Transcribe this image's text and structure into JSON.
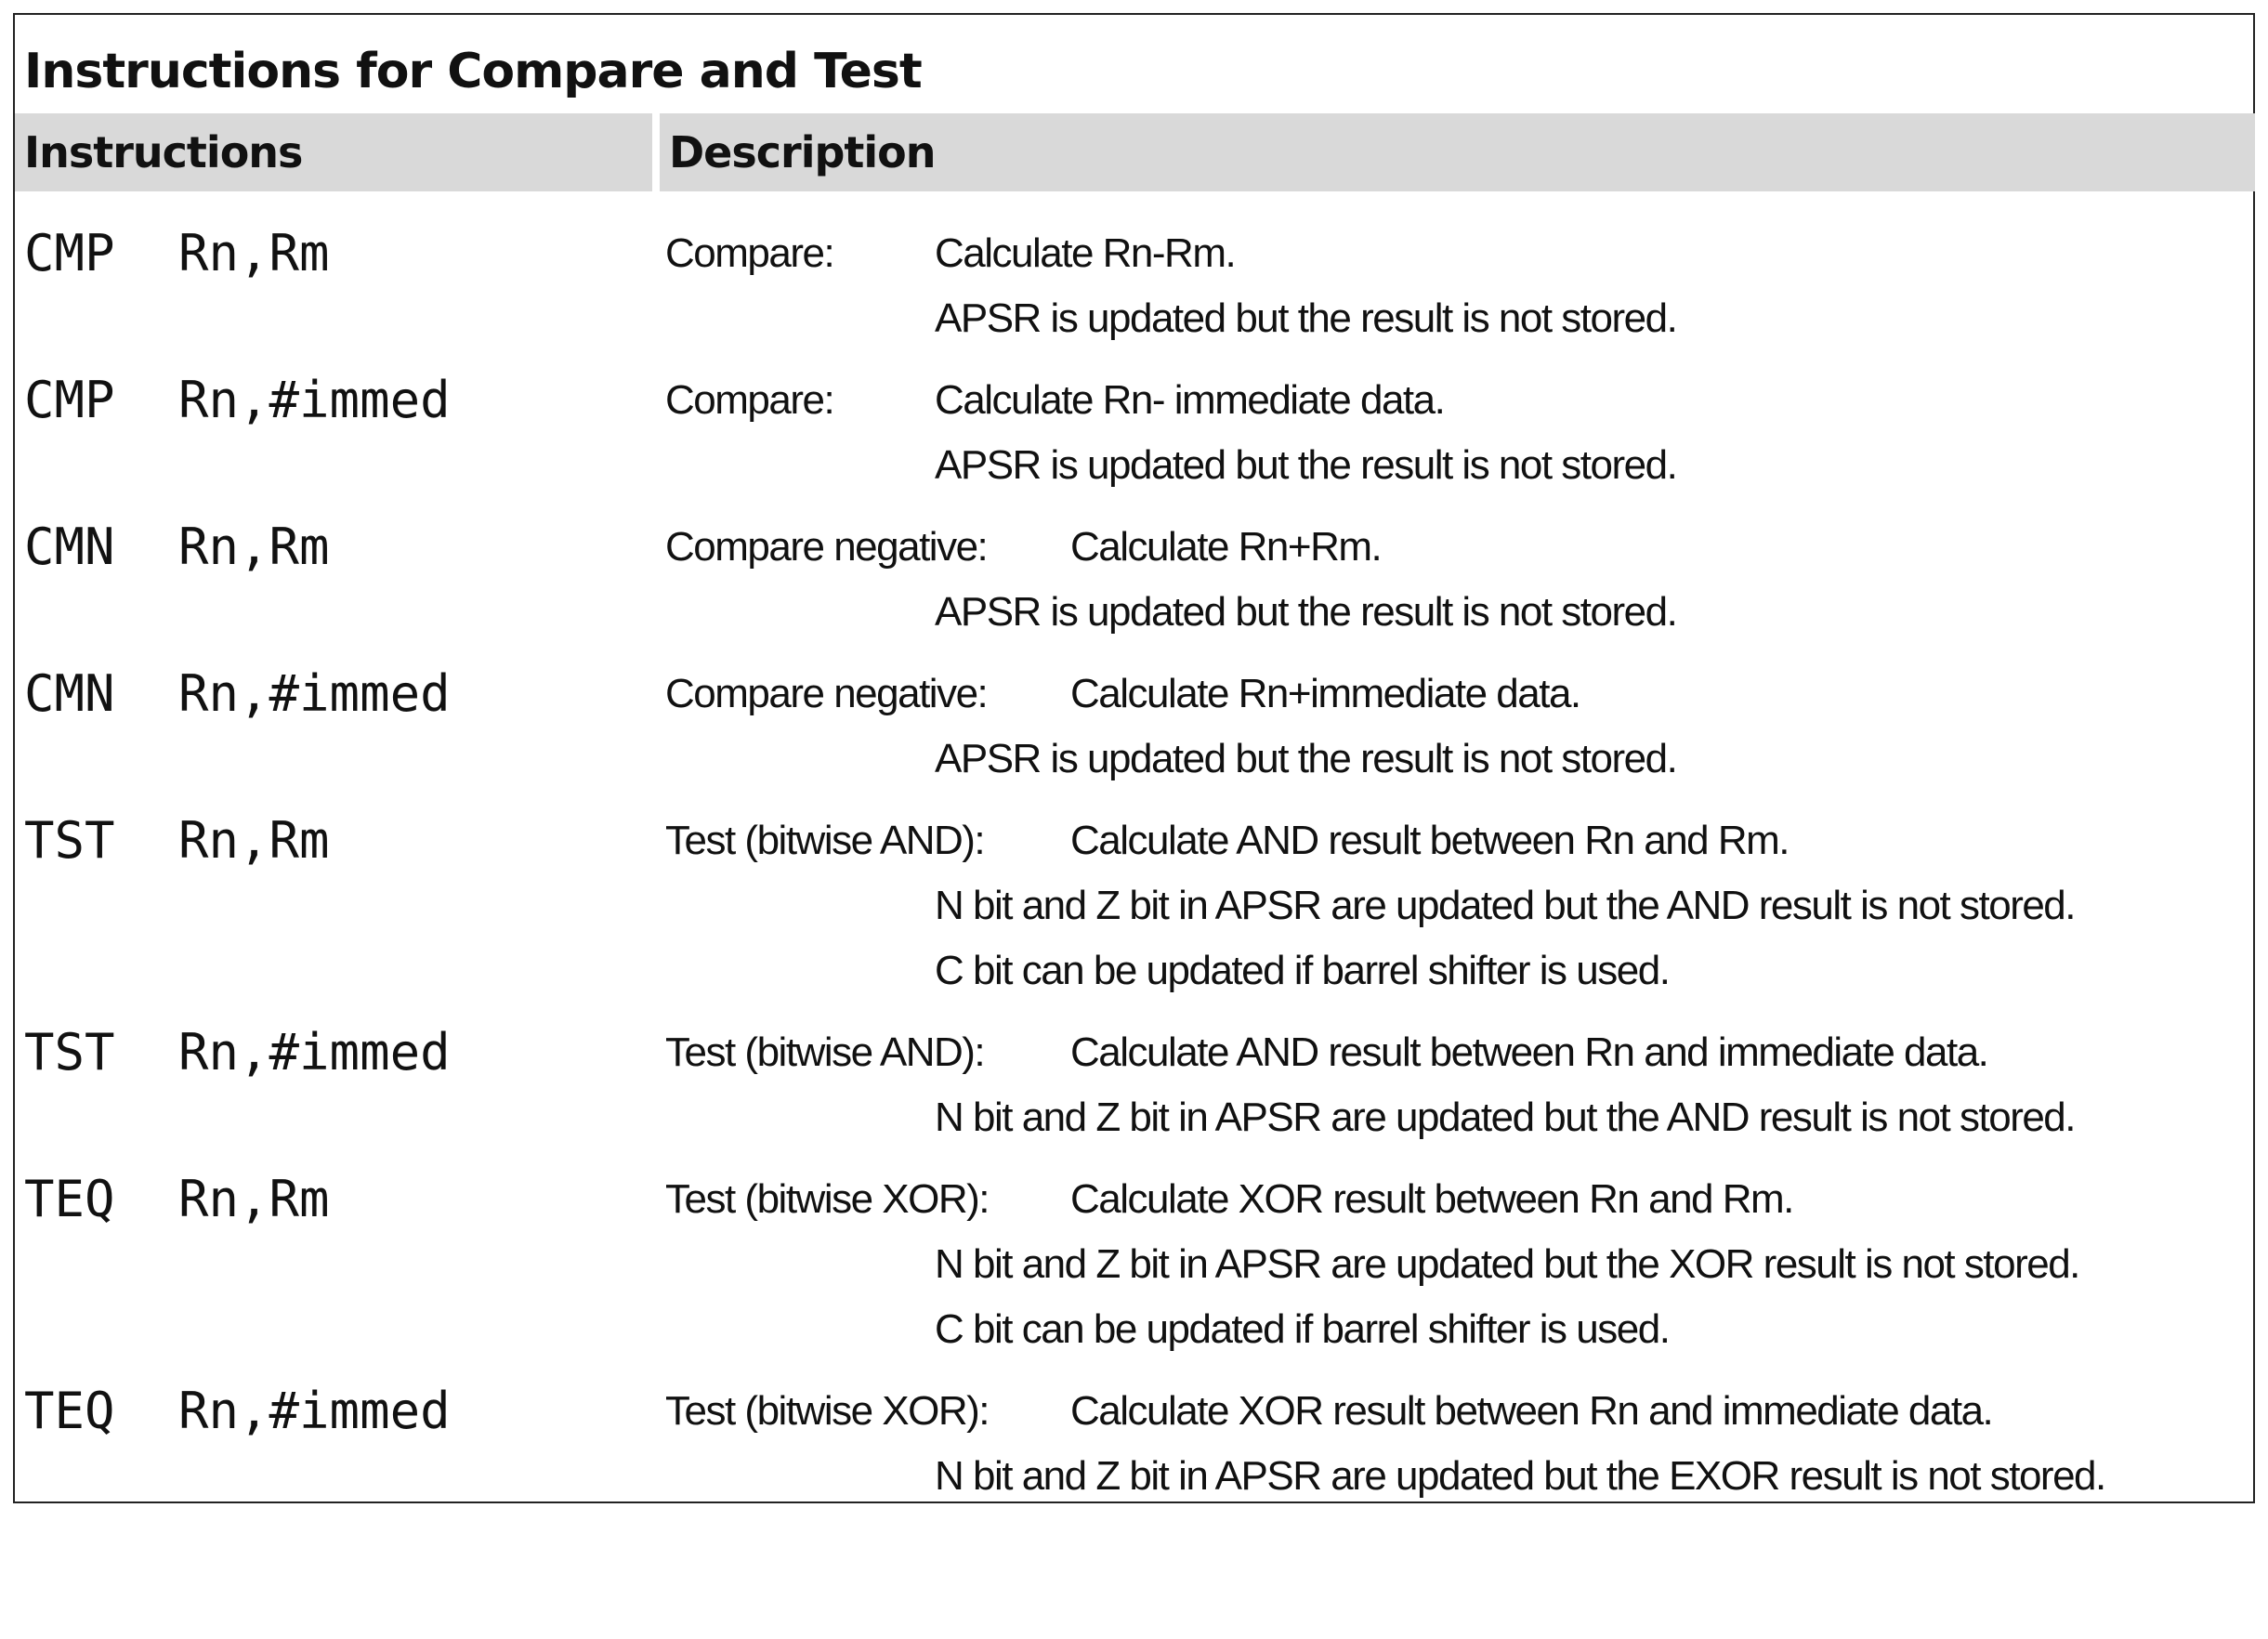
{
  "title": "Instructions for Compare and Test",
  "headers": {
    "instructions": "Instructions",
    "description": "Description"
  },
  "rows": [
    {
      "op": "CMP",
      "args": "Rn,Rm",
      "label": "Compare:",
      "text": "Calculate  Rn-Rm.",
      "cont": [
        "APSR is updated but the result is not stored."
      ]
    },
    {
      "op": "CMP",
      "args": "Rn,#immed",
      "label": "Compare:",
      "text": "Calculate  Rn- immediate data.",
      "cont": [
        "APSR is updated but the result is not stored."
      ]
    },
    {
      "op": "CMN",
      "args": "Rn,Rm",
      "label": "Compare negative:",
      "text": "Calculate Rn+Rm.",
      "cont": [
        "APSR is updated but the result is not stored."
      ]
    },
    {
      "op": "CMN",
      "args": "Rn,#immed",
      "label": "Compare negative:",
      "text": "Calculate Rn+immediate data.",
      "cont": [
        "APSR is updated but the result is not stored."
      ]
    },
    {
      "op": "TST",
      "args": "Rn,Rm",
      "label": "Test (bitwise AND):",
      "text": "Calculate AND result between Rn and Rm.",
      "cont": [
        "N bit and Z bit in APSR are updated but the AND result is not stored.",
        "C bit can be updated if barrel shifter is used."
      ]
    },
    {
      "op": "TST",
      "args": "Rn,#immed",
      "label": "Test (bitwise AND):",
      "text": "Calculate AND result between Rn and immediate data.",
      "cont": [
        "N bit and Z bit in APSR are updated but the AND result is not stored."
      ]
    },
    {
      "op": "TEQ",
      "args": "Rn,Rm",
      "label": "Test (bitwise XOR):",
      "text": "Calculate XOR result between Rn and Rm.",
      "cont": [
        "N bit and Z bit in APSR are updated but the XOR result is not stored.",
        "C bit can be updated if barrel shifter is used."
      ]
    },
    {
      "op": "TEQ",
      "args": "Rn,#immed",
      "label": "Test (bitwise XOR):",
      "text": "Calculate XOR result between Rn and immediate data.",
      "cont": [
        "N bit and Z bit in APSR are updated but the EXOR result is not stored."
      ]
    }
  ]
}
